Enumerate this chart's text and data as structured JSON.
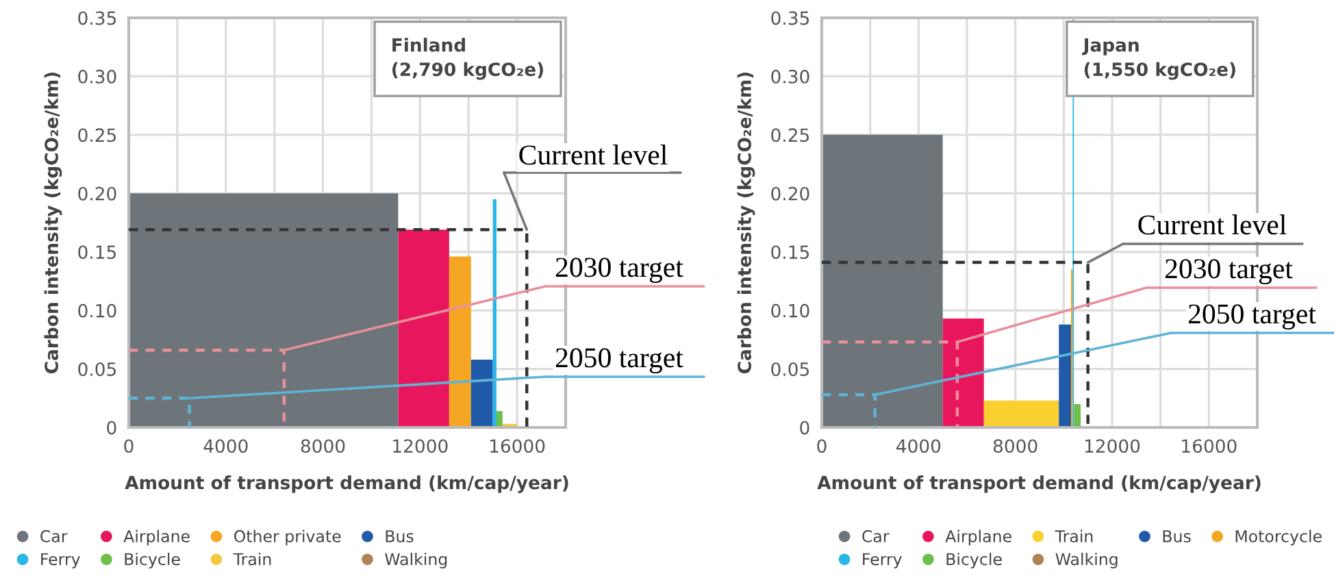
{
  "chart_data": [
    {
      "type": "histogram",
      "xlabel": "Amount of transport demand (km/cap/year)",
      "ylabel": "Carbon intensity (kgCO₂e/km)",
      "annotations": [
        "Finland\n(2,790 kgCO₂e)"
      ],
      "xlim": [
        0,
        18000
      ],
      "xticks": [
        0,
        {
          "value": 2000,
          "label": null
        },
        4000,
        {
          "value": 6000,
          "label": null
        },
        8000,
        {
          "value": 10000,
          "label": null
        },
        12000,
        {
          "value": 14000,
          "label": null
        },
        16000
      ],
      "ylim": [
        0,
        0.35
      ],
      "yticks": [
        0,
        0.05,
        {
          "value": 0.1,
          "label": "0.10"
        },
        0.15,
        {
          "value": 0.2,
          "label": "0.20"
        },
        0.25,
        {
          "value": 0.3,
          "label": "0.30"
        },
        0.35
      ],
      "grid": true,
      "legend": "bottom",
      "series": [
        {
          "name": "Car",
          "color": "#6d757a",
          "bins": [
            0,
            11100
          ],
          "values": [
            0.2
          ]
        },
        {
          "name": "Airplane",
          "color": "#e8175d",
          "bins": [
            11100,
            13200
          ],
          "values": [
            0.169
          ]
        },
        {
          "name": "Other private",
          "color": "#f5a623",
          "bins": [
            13200,
            14100
          ],
          "values": [
            0.146
          ]
        },
        {
          "name": "Bus",
          "color": "#1f5ba8",
          "bins": [
            14100,
            15000
          ],
          "values": [
            0.058
          ]
        },
        {
          "name": "Ferry",
          "color": "#29b6e8",
          "bins": [
            15000,
            15150
          ],
          "values": [
            0.195
          ]
        },
        {
          "name": "Bicycle",
          "color": "#6cc04a",
          "bins": [
            15150,
            15400
          ],
          "values": [
            0.014
          ]
        },
        {
          "name": "Train",
          "color": "#f5c842",
          "bins": [
            15400,
            16000
          ],
          "values": [
            0.003
          ]
        },
        {
          "name": "Walking",
          "color": "#b08357"
        },
        {
          "name": "Current level",
          "type": "line",
          "color": "#333333",
          "line_style": "dashed",
          "x": [
            0,
            16400,
            16400
          ],
          "values": [
            0.169,
            0.169,
            0
          ]
        },
        {
          "name": "2030 target",
          "type": "line",
          "color": "#e8909c",
          "line_style": "dashed",
          "x": [
            0,
            6400,
            6400
          ],
          "values": [
            0.066,
            0.066,
            0
          ]
        },
        {
          "name": "2050 target",
          "type": "line",
          "color": "#5fb4d6",
          "line_style": "dashed",
          "x": [
            0,
            2500,
            2500
          ],
          "values": [
            0.025,
            0.025,
            0
          ]
        }
      ]
    },
    {
      "type": "histogram",
      "xlabel": "Amount of transport demand (km/cap/year)",
      "ylabel": "Carbon intensity (kgCO₂e/km)",
      "annotations": [
        "Japan\n(1,550 kgCO₂e)"
      ],
      "xlim": [
        0,
        18000
      ],
      "xticks": [
        0,
        {
          "value": 2000,
          "label": null
        },
        4000,
        {
          "value": 6000,
          "label": null
        },
        8000,
        {
          "value": 10000,
          "label": null
        },
        12000,
        {
          "value": 14000,
          "label": null
        },
        16000
      ],
      "ylim": [
        0,
        0.35
      ],
      "yticks": [
        0,
        0.05,
        {
          "value": 0.1,
          "label": "0.10"
        },
        0.15,
        {
          "value": 0.2,
          "label": "0.20"
        },
        0.25,
        {
          "value": 0.3,
          "label": "0.30"
        },
        0.35
      ],
      "grid": true,
      "legend": "bottom",
      "series": [
        {
          "name": "Car",
          "color": "#6d757a",
          "bins": [
            0,
            5000
          ],
          "values": [
            0.25
          ]
        },
        {
          "name": "Airplane",
          "color": "#e8175d",
          "bins": [
            5000,
            6700
          ],
          "values": [
            0.093
          ]
        },
        {
          "name": "Train",
          "color": "#f9d030",
          "bins": [
            6700,
            9800
          ],
          "values": [
            0.023
          ]
        },
        {
          "name": "Bus",
          "color": "#1f5ba8",
          "bins": [
            9800,
            10300
          ],
          "values": [
            0.088
          ]
        },
        {
          "name": "Motorcycle",
          "color": "#f5a623",
          "bins": [
            10300,
            10370
          ],
          "values": [
            0.135
          ]
        },
        {
          "name": "Ferry",
          "color": "#29b6e8",
          "bins": [
            10370,
            10420
          ],
          "values": [
            0.35
          ]
        },
        {
          "name": "Bicycle",
          "color": "#6cc04a",
          "bins": [
            10420,
            10700
          ],
          "values": [
            0.02
          ]
        },
        {
          "name": "Walking",
          "color": "#b08357"
        },
        {
          "name": "Current level",
          "type": "line",
          "color": "#333333",
          "line_style": "dashed",
          "x": [
            0,
            11000,
            11000
          ],
          "values": [
            0.141,
            0.141,
            0
          ]
        },
        {
          "name": "2030 target",
          "type": "line",
          "color": "#e8909c",
          "line_style": "dashed",
          "x": [
            0,
            5600,
            5600
          ],
          "values": [
            0.073,
            0.073,
            0
          ]
        },
        {
          "name": "2050 target",
          "type": "line",
          "color": "#5fb4d6",
          "line_style": "dashed",
          "x": [
            0,
            2200,
            2200
          ],
          "values": [
            0.028,
            0.028,
            0
          ]
        }
      ]
    }
  ]
}
